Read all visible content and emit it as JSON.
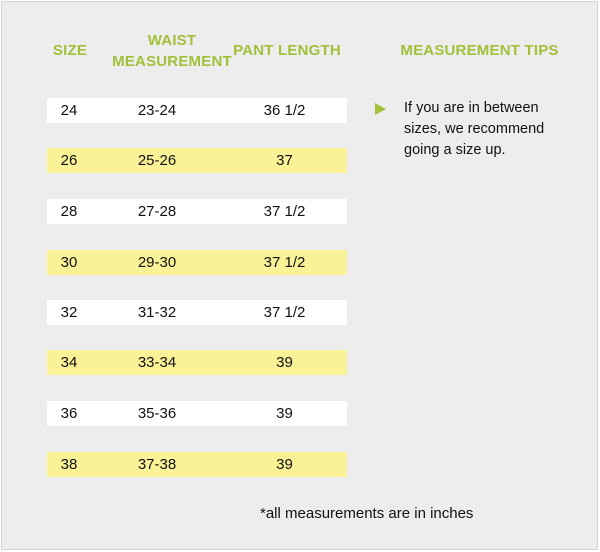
{
  "headers": {
    "size": "SIZE",
    "waist_line1": "WAIST",
    "waist_line2": "MEASUREMENT",
    "pant_length": "PANT LENGTH",
    "tips": "MEASUREMENT TIPS"
  },
  "rows": [
    {
      "size": "24",
      "waist": "23-24",
      "length": "36 1/2"
    },
    {
      "size": "26",
      "waist": "25-26",
      "length": "37"
    },
    {
      "size": "28",
      "waist": "27-28",
      "length": "37 1/2"
    },
    {
      "size": "30",
      "waist": "29-30",
      "length": "37 1/2"
    },
    {
      "size": "32",
      "waist": "31-32",
      "length": "37 1/2"
    },
    {
      "size": "34",
      "waist": "33-34",
      "length": "39"
    },
    {
      "size": "36",
      "waist": "35-36",
      "length": "39"
    },
    {
      "size": "38",
      "waist": "37-38",
      "length": "39"
    }
  ],
  "tip": {
    "icon": "triangle-bullet-icon",
    "text": "If you are in between sizes, we recommend going a size up."
  },
  "footnote": "*all measurements are in inches",
  "colors": {
    "accent": "#a2c03a",
    "row_highlight": "#faf297",
    "row_plain": "#ffffff",
    "background": "#ededed"
  }
}
